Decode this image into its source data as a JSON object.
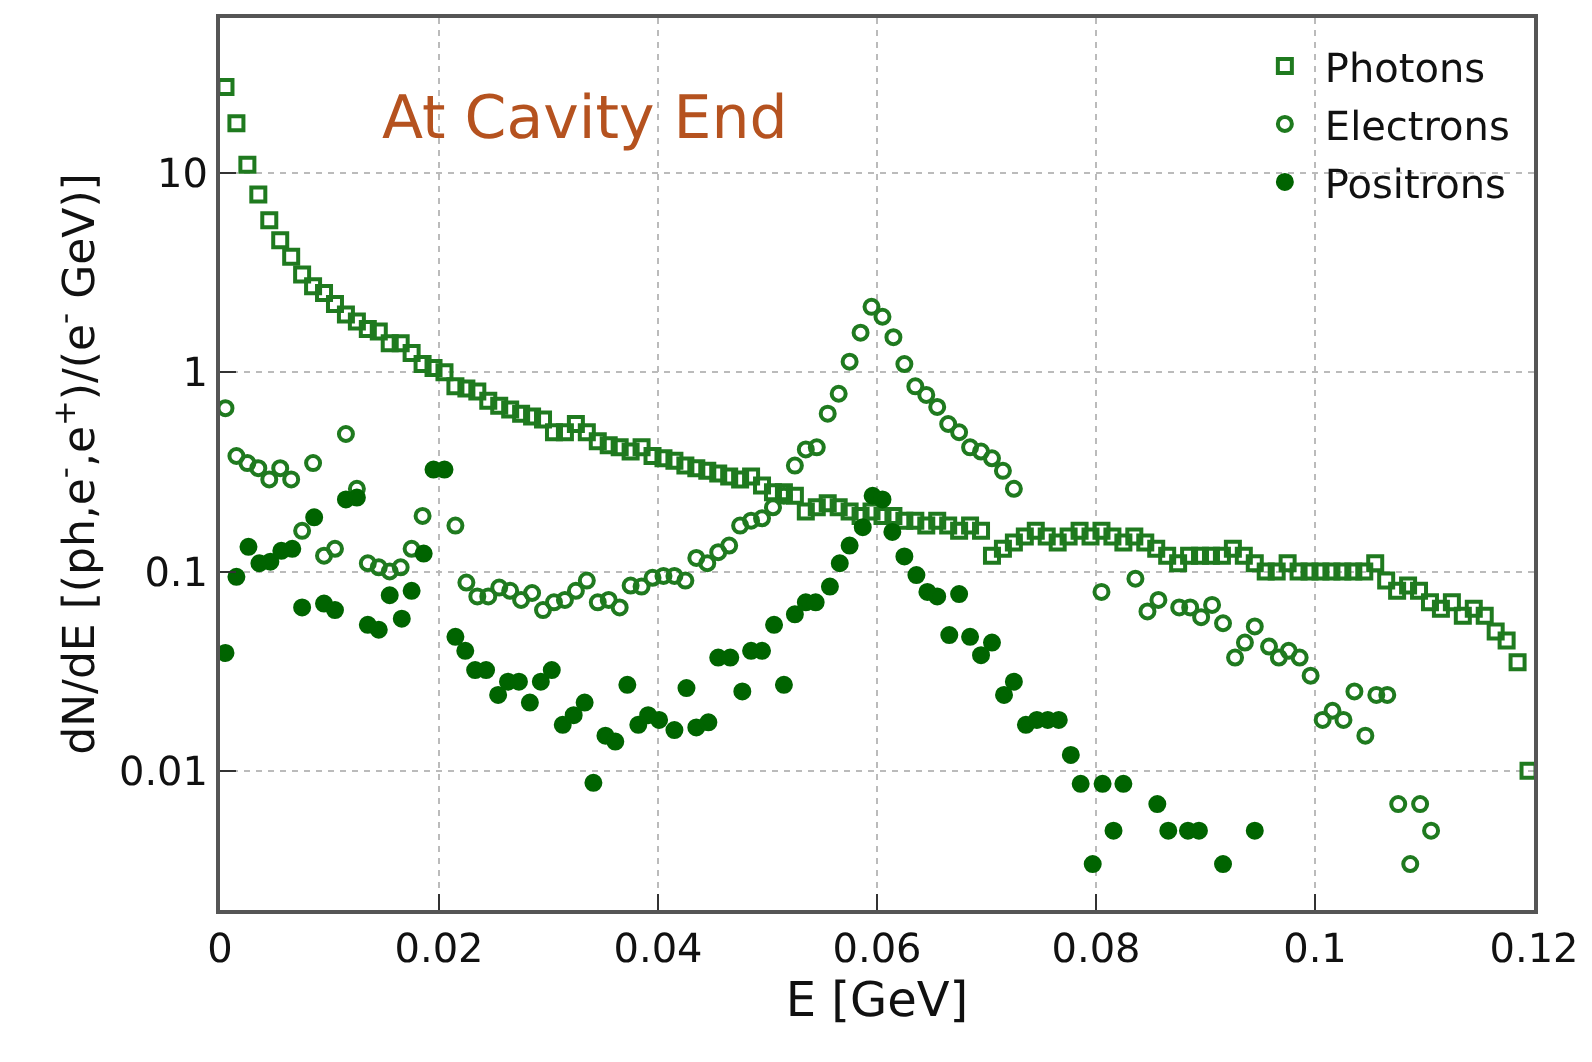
{
  "chart_data": {
    "type": "scatter",
    "title": "At Cavity End",
    "xlabel": "E [GeV]",
    "ylabel": "dN/dE [(ph,e$^{-}$,e$^{+}$)/(e$^{-}$ GeV)]",
    "xlim": [
      0,
      0.12
    ],
    "xticks": [
      0,
      0.02,
      0.04,
      0.06,
      0.08,
      0.1,
      0.12
    ],
    "ylim": [
      0.002,
      60
    ],
    "yticks": [
      0.01,
      0.1,
      1,
      10
    ],
    "log": "y",
    "grid": true,
    "legend": "top right",
    "series": [
      {
        "name": "Photons",
        "color": "#1f7a1f",
        "marker": "square-open",
        "x": [
          0.0005,
          0.0015,
          0.0025,
          0.0035,
          0.0045,
          0.0055,
          0.0065,
          0.0075,
          0.0085,
          0.0095,
          0.0105,
          0.0115,
          0.0125,
          0.0135,
          0.0145,
          0.0155,
          0.0165,
          0.0175,
          0.0185,
          0.0195,
          0.0205,
          0.0215,
          0.0225,
          0.0235,
          0.0245,
          0.0255,
          0.0265,
          0.0275,
          0.0285,
          0.0295,
          0.0305,
          0.0315,
          0.0325,
          0.0335,
          0.0345,
          0.0355,
          0.0365,
          0.0375,
          0.0385,
          0.0395,
          0.0405,
          0.0415,
          0.0425,
          0.0435,
          0.0445,
          0.0455,
          0.0465,
          0.0475,
          0.0485,
          0.0495,
          0.0505,
          0.0515,
          0.0525,
          0.0535,
          0.0545,
          0.0555,
          0.0565,
          0.0575,
          0.0585,
          0.0595,
          0.0605,
          0.0615,
          0.0625,
          0.0635,
          0.0645,
          0.0655,
          0.0665,
          0.0675,
          0.0685,
          0.0695,
          0.0705,
          0.0715,
          0.0725,
          0.0735,
          0.0745,
          0.0755,
          0.0765,
          0.0775,
          0.0785,
          0.0795,
          0.0805,
          0.0815,
          0.0825,
          0.0835,
          0.0845,
          0.0855,
          0.0865,
          0.0875,
          0.0885,
          0.0895,
          0.0905,
          0.0915,
          0.0925,
          0.0935,
          0.0945,
          0.0955,
          0.0965,
          0.0975,
          0.0985,
          0.0995,
          0.1005,
          0.1015,
          0.1025,
          0.1035,
          0.1045,
          0.1055,
          0.1065,
          0.1075,
          0.1085,
          0.1095,
          0.1105,
          0.1115,
          0.1125,
          0.1135,
          0.1145,
          0.1155,
          0.1165,
          0.1175,
          0.1185,
          0.1195
        ],
        "values": [
          27,
          17.8,
          11,
          7.8,
          5.8,
          4.6,
          3.8,
          3.1,
          2.7,
          2.5,
          2.2,
          1.95,
          1.8,
          1.65,
          1.6,
          1.4,
          1.4,
          1.25,
          1.1,
          1.05,
          1.0,
          0.85,
          0.83,
          0.8,
          0.72,
          0.68,
          0.65,
          0.62,
          0.6,
          0.58,
          0.5,
          0.5,
          0.55,
          0.5,
          0.45,
          0.43,
          0.42,
          0.4,
          0.42,
          0.38,
          0.37,
          0.36,
          0.34,
          0.33,
          0.32,
          0.31,
          0.3,
          0.29,
          0.3,
          0.27,
          0.25,
          0.25,
          0.24,
          0.2,
          0.21,
          0.22,
          0.21,
          0.2,
          0.19,
          0.2,
          0.19,
          0.19,
          0.18,
          0.18,
          0.17,
          0.18,
          0.17,
          0.16,
          0.17,
          0.16,
          0.12,
          0.13,
          0.14,
          0.15,
          0.16,
          0.15,
          0.14,
          0.15,
          0.16,
          0.15,
          0.16,
          0.15,
          0.14,
          0.15,
          0.14,
          0.13,
          0.12,
          0.11,
          0.12,
          0.12,
          0.12,
          0.12,
          0.13,
          0.12,
          0.11,
          0.1,
          0.1,
          0.11,
          0.1,
          0.1,
          0.1,
          0.1,
          0.1,
          0.1,
          0.1,
          0.11,
          0.09,
          0.08,
          0.085,
          0.08,
          0.07,
          0.065,
          0.07,
          0.06,
          0.065,
          0.06,
          0.05,
          0.045,
          0.035,
          0.01
        ]
      },
      {
        "name": "Electrons",
        "color": "#1f7a1f",
        "marker": "circle-open",
        "x": [
          0.0005,
          0.0015,
          0.0025,
          0.0035,
          0.0045,
          0.0055,
          0.0065,
          0.0075,
          0.0085,
          0.0095,
          0.0105,
          0.0115,
          0.0125,
          0.0135,
          0.0145,
          0.0155,
          0.0165,
          0.0175,
          0.0185,
          0.0215,
          0.0225,
          0.0235,
          0.0245,
          0.0255,
          0.0265,
          0.0275,
          0.0285,
          0.0295,
          0.0305,
          0.0315,
          0.0325,
          0.0335,
          0.0345,
          0.0355,
          0.0365,
          0.0375,
          0.0385,
          0.0395,
          0.0405,
          0.0415,
          0.0425,
          0.0435,
          0.0445,
          0.0455,
          0.0465,
          0.0475,
          0.0485,
          0.0495,
          0.0505,
          0.0515,
          0.0525,
          0.0535,
          0.0545,
          0.0555,
          0.0565,
          0.0575,
          0.0585,
          0.0595,
          0.0605,
          0.0615,
          0.0625,
          0.0635,
          0.0645,
          0.0655,
          0.0665,
          0.0675,
          0.0685,
          0.0695,
          0.0705,
          0.0715,
          0.0725,
          0.0805,
          0.0836,
          0.0847,
          0.0857,
          0.0876,
          0.0886,
          0.0896,
          0.0906,
          0.0916,
          0.0927,
          0.0936,
          0.0945,
          0.0958,
          0.0967,
          0.0976,
          0.0986,
          0.0996,
          0.1007,
          0.1016,
          0.1026,
          0.1036,
          0.1046,
          0.1056,
          0.1066,
          0.1076,
          0.1087,
          0.1096,
          0.1106
        ],
        "values": [
          0.66,
          0.38,
          0.35,
          0.33,
          0.29,
          0.33,
          0.29,
          0.16,
          0.35,
          0.12,
          0.13,
          0.49,
          0.26,
          0.11,
          0.105,
          0.1,
          0.105,
          0.13,
          0.19,
          0.17,
          0.088,
          0.075,
          0.075,
          0.083,
          0.08,
          0.072,
          0.078,
          0.064,
          0.07,
          0.072,
          0.08,
          0.09,
          0.07,
          0.072,
          0.066,
          0.085,
          0.084,
          0.093,
          0.095,
          0.095,
          0.09,
          0.117,
          0.11,
          0.125,
          0.135,
          0.17,
          0.18,
          0.185,
          0.21,
          0.24,
          0.34,
          0.41,
          0.42,
          0.62,
          0.78,
          1.13,
          1.58,
          2.13,
          1.9,
          1.5,
          1.1,
          0.85,
          0.77,
          0.67,
          0.55,
          0.5,
          0.42,
          0.4,
          0.37,
          0.32,
          0.26,
          0.079,
          0.092,
          0.063,
          0.072,
          0.066,
          0.066,
          0.059,
          0.068,
          0.055,
          0.037,
          0.044,
          0.053,
          0.042,
          0.037,
          0.04,
          0.037,
          0.03,
          0.018,
          0.02,
          0.018,
          0.025,
          0.015,
          0.024,
          0.024,
          0.0068,
          0.0034,
          0.0068,
          0.005
        ]
      },
      {
        "name": "Positrons",
        "color": "#006400",
        "marker": "circle",
        "x": [
          0.0005,
          0.0015,
          0.0026,
          0.0036,
          0.0046,
          0.0056,
          0.0066,
          0.0075,
          0.0086,
          0.0095,
          0.0105,
          0.0115,
          0.0125,
          0.0135,
          0.0145,
          0.0155,
          0.0166,
          0.0175,
          0.0186,
          0.0195,
          0.0205,
          0.0215,
          0.0224,
          0.0233,
          0.0243,
          0.0254,
          0.0263,
          0.0273,
          0.0283,
          0.0293,
          0.0303,
          0.0313,
          0.0323,
          0.0333,
          0.0341,
          0.0352,
          0.0361,
          0.0372,
          0.0382,
          0.0391,
          0.0401,
          0.0415,
          0.0426,
          0.0435,
          0.0446,
          0.0455,
          0.0466,
          0.0477,
          0.0485,
          0.0495,
          0.0506,
          0.0515,
          0.0525,
          0.0535,
          0.0544,
          0.0557,
          0.0566,
          0.0575,
          0.0587,
          0.0596,
          0.0605,
          0.0614,
          0.0625,
          0.0636,
          0.0646,
          0.0655,
          0.0666,
          0.0675,
          0.0685,
          0.0695,
          0.0705,
          0.0716,
          0.0725,
          0.0736,
          0.0746,
          0.0756,
          0.0766,
          0.0777,
          0.0786,
          0.0797,
          0.0806,
          0.0816,
          0.0825,
          0.0856,
          0.0866,
          0.0884,
          0.0894,
          0.0916,
          0.0945
        ],
        "values": [
          0.039,
          0.094,
          0.133,
          0.11,
          0.112,
          0.127,
          0.13,
          0.066,
          0.187,
          0.069,
          0.064,
          0.23,
          0.235,
          0.054,
          0.051,
          0.076,
          0.058,
          0.08,
          0.123,
          0.325,
          0.325,
          0.047,
          0.04,
          0.032,
          0.032,
          0.024,
          0.028,
          0.028,
          0.022,
          0.028,
          0.032,
          0.017,
          0.019,
          0.022,
          0.0087,
          0.015,
          0.014,
          0.027,
          0.017,
          0.019,
          0.018,
          0.016,
          0.026,
          0.0165,
          0.0175,
          0.037,
          0.037,
          0.025,
          0.04,
          0.04,
          0.054,
          0.027,
          0.061,
          0.07,
          0.07,
          0.084,
          0.11,
          0.135,
          0.167,
          0.24,
          0.23,
          0.158,
          0.119,
          0.096,
          0.079,
          0.075,
          0.048,
          0.077,
          0.047,
          0.038,
          0.044,
          0.024,
          0.028,
          0.017,
          0.018,
          0.018,
          0.018,
          0.012,
          0.0086,
          0.0034,
          0.0086,
          0.005,
          0.0086,
          0.0068,
          0.005,
          0.005,
          0.005,
          0.0034,
          0.005
        ]
      }
    ]
  }
}
